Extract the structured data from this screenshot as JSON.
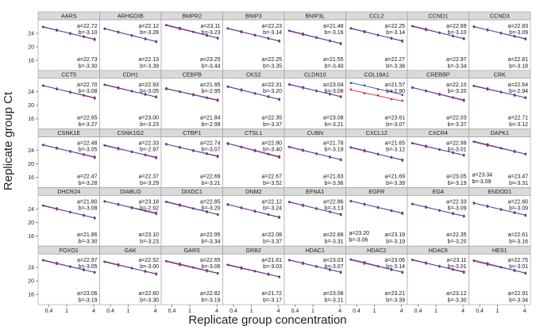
{
  "chart_data": {
    "type": "scatter",
    "title": "",
    "xlabel": "Replicate group concentration",
    "ylabel": "Replicate group Ct",
    "x_scale": "log",
    "x_ticks": [
      0.4,
      1,
      4
    ],
    "x_tick_labels": [
      "0.4",
      "1",
      "4"
    ],
    "y_ticks": [
      16,
      20,
      24
    ],
    "ylim": [
      13,
      28
    ],
    "grid": false,
    "series_colors": {
      "replicate_1": "#d7263d",
      "replicate_2": "#3b46a8"
    },
    "panels": [
      {
        "gene": "AARS",
        "top": {
          "a": "a=22.72",
          "b": "b=-3.10"
        },
        "bottom": {
          "a": "a=22.73",
          "b": "b=-3.30"
        }
      },
      {
        "gene": "ARHGDIB",
        "top": {
          "a": "a=22.12",
          "b": "b=-3.28"
        },
        "bottom": {
          "a": "a=22.13",
          "b": "b=-3.39"
        }
      },
      {
        "gene": "BMPR2",
        "top": {
          "a": "a=23.11",
          "b": "b=-3.23"
        },
        "bottom": {
          "a": "a=23.25",
          "b": "b=-3.44"
        }
      },
      {
        "gene": "BNIP3",
        "top": {
          "a": "a=22.23",
          "b": "b=-3.14"
        },
        "bottom": {
          "a": "a=22.25",
          "b": "b=-3.35"
        }
      },
      {
        "gene": "BNIP3L",
        "top": {
          "a": "a=21.48",
          "b": "b=-3.16"
        },
        "bottom": {
          "a": "a=21.55",
          "b": "b=-3.40"
        }
      },
      {
        "gene": "CCL2",
        "top": {
          "a": "a=22.25",
          "b": "b=-3.14"
        },
        "bottom": {
          "a": "a=22.27",
          "b": "b=-3.38"
        }
      },
      {
        "gene": "CCND1",
        "top": {
          "a": "a=22.89",
          "b": "b=-3.10"
        },
        "bottom": {
          "a": "a=22.97",
          "b": "b=-3.34"
        }
      },
      {
        "gene": "CCND3",
        "top": {
          "a": "a=22.83",
          "b": "b=-3.09"
        },
        "bottom": {
          "a": "a=22.81",
          "b": "b=-3.18"
        }
      },
      {
        "gene": "CCT5",
        "top": {
          "a": "a=22.70",
          "b": "b=-3.08"
        },
        "bottom": {
          "a": "a=22.65",
          "b": "b=-3.27"
        }
      },
      {
        "gene": "CDH1",
        "top": {
          "a": "a=22.93",
          "b": "b=-3.05"
        },
        "bottom": {
          "a": "a=23.00",
          "b": "b=-3.23"
        }
      },
      {
        "gene": "CEBPB",
        "top": {
          "a": "a=21.95",
          "b": "b=-2.95"
        },
        "bottom": {
          "a": "a=21.84",
          "b": "b=-2.99"
        }
      },
      {
        "gene": "CKS2",
        "top": {
          "a": "a=22.31",
          "b": "b=-3.20"
        },
        "bottom": {
          "a": "a=22.35",
          "b": "b=-3.37"
        }
      },
      {
        "gene": "CLDN10",
        "top": {
          "a": "a=23.04",
          "b": "b=-3.08"
        },
        "bottom": {
          "a": "a=23.08",
          "b": "b=-3.21"
        }
      },
      {
        "gene": "COL18A1",
        "top": {
          "a": "a=21.57",
          "b": "b=-2.90"
        },
        "bottom": {
          "a": "a=23.61",
          "b": "b=-3.07"
        }
      },
      {
        "gene": "CREBBP",
        "top": {
          "a": "a=22.10",
          "b": "b=-3.20"
        },
        "bottom": {
          "a": "a=22.03",
          "b": "b=-3.37"
        }
      },
      {
        "gene": "CRK",
        "top": {
          "a": "a=22.64",
          "b": "b=-2.94"
        },
        "bottom": {
          "a": "a=22.71",
          "b": "b=-3.12"
        }
      },
      {
        "gene": "CSNK1E",
        "top": {
          "a": "a=22.48",
          "b": "b=-3.05"
        },
        "bottom": {
          "a": "a=22.47",
          "b": "b=-3.28"
        }
      },
      {
        "gene": "CSNK1G2",
        "top": {
          "a": "a=22.33",
          "b": "b=-2.97"
        },
        "bottom": {
          "a": "a=22.37",
          "b": "b=-3.29"
        }
      },
      {
        "gene": "CTBP1",
        "top": {
          "a": "a=22.74",
          "b": "b=-3.07"
        },
        "bottom": {
          "a": "a=22.69",
          "b": "b=-3.21"
        }
      },
      {
        "gene": "CTSL1",
        "top": {
          "a": "a=22.80",
          "b": "b=-3.40"
        },
        "bottom": {
          "a": "a=22.67",
          "b": "b=-3.52"
        }
      },
      {
        "gene": "CUBN",
        "top": {
          "a": "a=21.78",
          "b": "b=-3.19"
        },
        "bottom": {
          "a": "a=21.83",
          "b": "b=-3.36"
        }
      },
      {
        "gene": "CXCL12",
        "top": {
          "a": "a=21.65",
          "b": "b=-3.12"
        },
        "bottom": {
          "a": "a=21.69",
          "b": "b=-3.39"
        }
      },
      {
        "gene": "CXCR4",
        "top": {
          "a": "a=22.99",
          "b": "b=-3.01"
        },
        "bottom": {
          "a": "a=23.05",
          "b": "b=-3.19"
        }
      },
      {
        "gene": "DAPK1",
        "top": {
          "a": "",
          "b": ""
        },
        "bottom": {
          "a": "a=23.47",
          "b": "b=-3.31"
        },
        "left": {
          "a": "a=23.34",
          "b": "b=-3.09"
        }
      },
      {
        "gene": "DHCR24",
        "top": {
          "a": "a=21.80",
          "b": "b=-3.08"
        },
        "bottom": {
          "a": "a=21.86",
          "b": "b=-3.30"
        }
      },
      {
        "gene": "DIABLO",
        "top": {
          "a": "a=23.18",
          "b": "b=-2.92"
        },
        "bottom": {
          "a": "a=23.10",
          "b": "b=-3.23"
        }
      },
      {
        "gene": "DIXDC1",
        "top": {
          "a": "a=22.85",
          "b": "b=-3.20"
        },
        "bottom": {
          "a": "a=22.95",
          "b": "b=-3.34"
        }
      },
      {
        "gene": "DNM2",
        "top": {
          "a": "a=22.12",
          "b": "b=-3.24"
        },
        "bottom": {
          "a": "a=22.08",
          "b": "b=-3.37"
        }
      },
      {
        "gene": "EFNA1",
        "top": {
          "a": "a=22.86",
          "b": "b=-3.13"
        },
        "bottom": {
          "a": "a=22.88",
          "b": "b=-3.31"
        }
      },
      {
        "gene": "EGFR",
        "top": {
          "a": "",
          "b": ""
        },
        "bottom": {
          "a": "a=23.19",
          "b": "b=-3.19"
        },
        "left": {
          "a": "a=23.20",
          "b": "b=-3.06"
        }
      },
      {
        "gene": "EG4",
        "top": {
          "a": "a=22.33",
          "b": "b=-3.09"
        },
        "bottom": {
          "a": "a=22.35",
          "b": "b=-3.20"
        }
      },
      {
        "gene": "ENDOD1",
        "top": {
          "a": "a=22.60",
          "b": "b=-3.09"
        },
        "bottom": {
          "a": "a=22.61",
          "b": "b=-3.16"
        }
      },
      {
        "gene": "FOXO1",
        "top": {
          "a": "a=22.97",
          "b": "b=-3.05"
        },
        "bottom": {
          "a": "a=23.06",
          "b": "b=-3.19"
        }
      },
      {
        "gene": "GAK",
        "top": {
          "a": "a=22.52",
          "b": "b=-3.00"
        },
        "bottom": {
          "a": "a=22.60",
          "b": "b=-3.30"
        }
      },
      {
        "gene": "GARS",
        "top": {
          "a": "a=22.65",
          "b": "b=-3.06"
        },
        "bottom": {
          "a": "a=22.82",
          "b": "b=-3.19"
        }
      },
      {
        "gene": "GRB2",
        "top": {
          "a": "a=21.61",
          "b": "b=-3.03"
        },
        "bottom": {
          "a": "a=21.72",
          "b": "b=-3.17"
        }
      },
      {
        "gene": "HDAC1",
        "top": {
          "a": "a=23.03",
          "b": "b=-3.07"
        },
        "bottom": {
          "a": "a=23.08",
          "b": "b=-3.21"
        }
      },
      {
        "gene": "HDAC2",
        "top": {
          "a": "a=23.06",
          "b": "b=-3.14"
        },
        "bottom": {
          "a": "a=23.21",
          "b": "b=-3.39"
        }
      },
      {
        "gene": "HDAC6",
        "top": {
          "a": "a=23.11",
          "b": "b=-3.01"
        },
        "bottom": {
          "a": "a=23.12",
          "b": "b=-3.30"
        }
      },
      {
        "gene": "HES1",
        "top": {
          "a": "a=22.75",
          "b": "b=-3.01"
        },
        "bottom": {
          "a": "a=22.91",
          "b": "b=-3.34"
        }
      }
    ]
  }
}
